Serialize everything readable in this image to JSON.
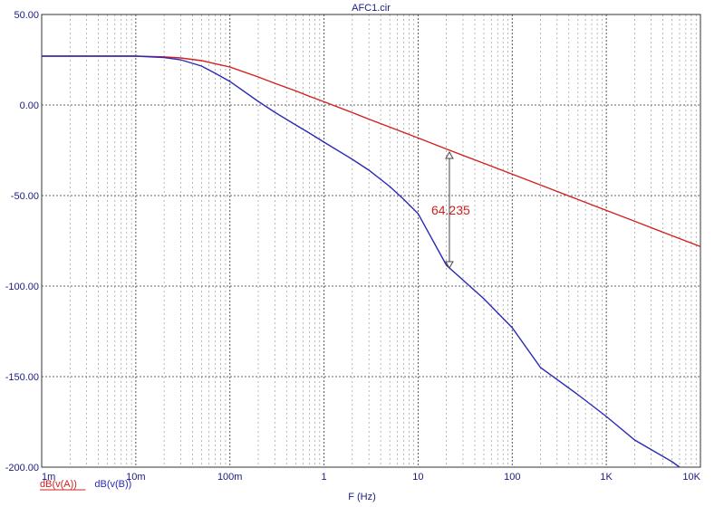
{
  "chart_data": {
    "type": "line",
    "title": "AFC1.cir",
    "xlabel": "F (Hz)",
    "ylabel": "",
    "x_scale": "log",
    "xlim": [
      0.001,
      10000
    ],
    "ylim": [
      -200,
      50
    ],
    "grid": true,
    "x_tick_labels": [
      "1m",
      "10m",
      "100m",
      "1",
      "10",
      "100",
      "1K",
      "10K"
    ],
    "x_tick_values": [
      0.001,
      0.01,
      0.1,
      1,
      10,
      100,
      1000,
      10000
    ],
    "y_tick_labels": [
      "50.00",
      "0.00",
      "-50.00",
      "-100.00",
      "-150.00",
      "-200.00"
    ],
    "y_tick_values": [
      50,
      0,
      -50,
      -100,
      -150,
      -200
    ],
    "series": [
      {
        "name": "dB(v(A))",
        "color": "#d22020",
        "x": [
          0.001,
          0.005,
          0.01,
          0.02,
          0.03,
          0.05,
          0.07,
          0.1,
          0.2,
          0.3,
          0.5,
          0.7,
          1,
          2,
          3,
          5,
          10,
          20,
          50,
          100,
          200,
          500,
          1000,
          2000,
          5000,
          10000
        ],
        "y": [
          27,
          27,
          27,
          26.6,
          26.0,
          24.5,
          22.8,
          21.0,
          15.5,
          12.0,
          7.8,
          4.8,
          1.8,
          -4.2,
          -7.8,
          -12.2,
          -18.2,
          -24.3,
          -32.2,
          -38.2,
          -44.2,
          -52.2,
          -58.2,
          -64.2,
          -72.2,
          -78.2
        ]
      },
      {
        "name": "dB(v(B))",
        "color": "#2a2ab8",
        "x": [
          0.001,
          0.005,
          0.01,
          0.02,
          0.03,
          0.05,
          0.07,
          0.1,
          0.2,
          0.3,
          0.5,
          0.7,
          1,
          2,
          3,
          5,
          7,
          10,
          20,
          50,
          100,
          200,
          500,
          1000,
          2000,
          5000,
          6000
        ],
        "y": [
          27,
          27,
          27,
          26.2,
          25.0,
          21.5,
          17.5,
          13.0,
          2.0,
          -4.0,
          -11.0,
          -15.5,
          -20.5,
          -30.0,
          -36.0,
          -45.0,
          -52.0,
          -60.0,
          -88.5,
          -107.0,
          -123.0,
          -145.0,
          -160.0,
          -172.0,
          -185.0,
          -197.0,
          -200.0
        ]
      }
    ],
    "annotations": [
      {
        "text": "64.235",
        "x": 21.5,
        "y_top": -26,
        "y_bottom": -90
      }
    ],
    "legend_placement": "bottom-left"
  }
}
